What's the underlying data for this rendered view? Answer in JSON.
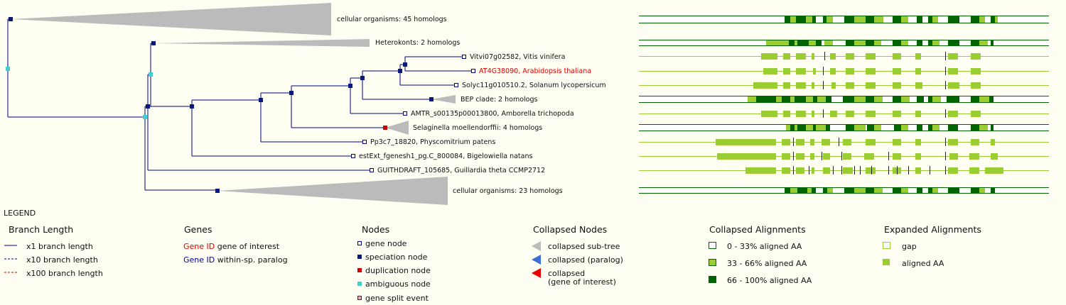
{
  "tree": {
    "nodes": [
      {
        "label": "cellular organisms: 45 homologs",
        "kind": "collapsed"
      },
      {
        "label": "Heterokonts: 2 homologs",
        "kind": "collapsed"
      },
      {
        "label": "Vitvi07g02582, Vitis vinifera",
        "kind": "gene"
      },
      {
        "label": "AT4G38090, Arabidopsis thaliana",
        "kind": "gene-of-interest"
      },
      {
        "label": "Solyc11g010510.2, Solanum lycopersicum",
        "kind": "gene"
      },
      {
        "label": "BEP clade: 2 homologs",
        "kind": "collapsed"
      },
      {
        "label": "AMTR_s00135p00013800, Amborella trichopoda",
        "kind": "gene"
      },
      {
        "label": "Selaginella moellendorffii: 4 homologs",
        "kind": "collapsed"
      },
      {
        "label": "Pp3c7_18820, Physcomitrium patens",
        "kind": "gene"
      },
      {
        "label": "estExt_fgenesh1_pg.C_800084, Bigelowiella natans",
        "kind": "gene"
      },
      {
        "label": "GUITHDRAFT_105685, Guillardia theta CCMP2712",
        "kind": "gene"
      },
      {
        "label": "cellular organisms: 23 homologs",
        "kind": "collapsed"
      }
    ]
  },
  "legend": {
    "title": "LEGEND",
    "branch_length": {
      "heading": "Branch Length",
      "items": [
        "x1 branch length",
        "x10 branch length",
        "x100 branch length"
      ]
    },
    "genes": {
      "heading": "Genes",
      "interest_id": "Gene ID",
      "interest_text": "gene of interest",
      "paralog_id": "Gene ID",
      "paralog_text": "within-sp. paralog"
    },
    "nodes": {
      "heading": "Nodes",
      "items": [
        "gene node",
        "speciation node",
        "duplication node",
        "ambiguous node",
        "gene split event"
      ]
    },
    "collapsed_nodes": {
      "heading": "Collapsed Nodes",
      "items": [
        "collapsed sub-tree",
        "collapsed (paralog)",
        "collapsed",
        "(gene of interest)"
      ]
    },
    "collapsed_alignments": {
      "heading": "Collapsed Alignments",
      "items": [
        "0 - 33% aligned AA",
        "33 - 66% aligned AA",
        "66 - 100% aligned AA"
      ]
    },
    "expanded_alignments": {
      "heading": "Expanded Alignments",
      "items": [
        "gap",
        "aligned AA"
      ]
    }
  },
  "colors": {
    "branch": "#00008b",
    "speciation": "#0a1a7a",
    "duplication": "#cc0000",
    "ambiguous": "#40d0d0",
    "collapsed": "#bbbbbb",
    "interest": "#e00000",
    "light_green": "#9acd32",
    "dark_green": "#006400"
  }
}
